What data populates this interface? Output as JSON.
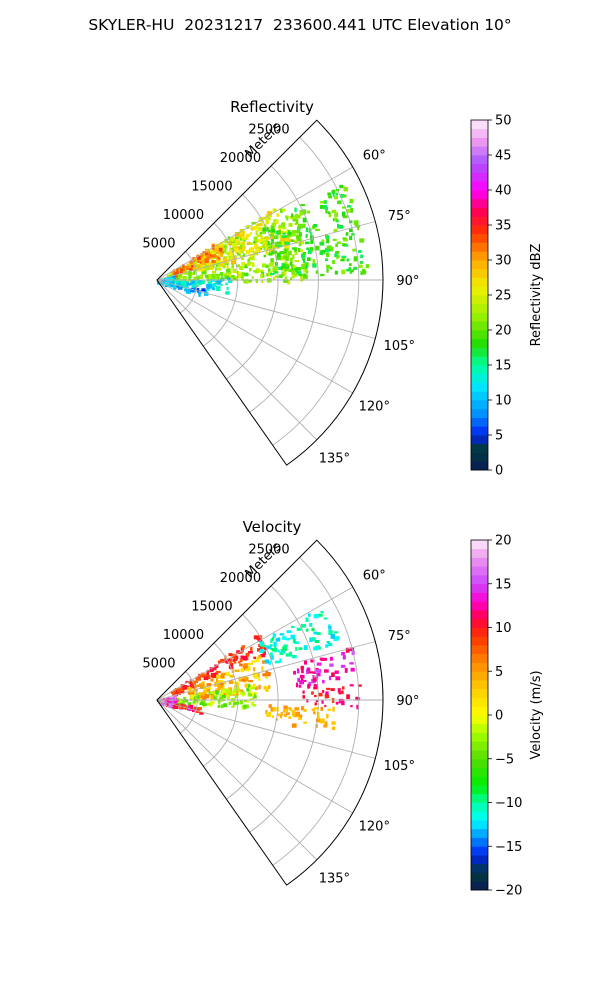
{
  "suptitle": "SKYLER-HU  20231217  233600.441 UTC Elevation 10°",
  "chart_data": [
    {
      "type": "heatmap",
      "projection": "polar-sector",
      "title": "Reflectivity",
      "radial_label": "Meters",
      "radial_ticks": [
        5000,
        10000,
        15000,
        20000,
        25000
      ],
      "radial_tick_labels": [
        "5000",
        "10000",
        "15000",
        "20000",
        "25000"
      ],
      "r_max": 28000,
      "theta_min_deg": 45,
      "theta_max_deg": 145,
      "angle_ticks_deg": [
        60,
        75,
        90,
        105,
        120,
        135
      ],
      "angle_tick_labels": [
        "60°",
        "75°",
        "90°",
        "105°",
        "120°",
        "135°"
      ],
      "grid": true,
      "colorbar": {
        "label": "Reflectivity dBZ",
        "min": 0,
        "max": 50,
        "ticks": [
          0,
          5,
          10,
          15,
          20,
          25,
          30,
          35,
          40,
          45,
          50
        ],
        "tick_labels": [
          "0",
          "5",
          "10",
          "15",
          "20",
          "25",
          "30",
          "35",
          "40",
          "45",
          "50"
        ],
        "stops": [
          [
            0,
            "#0a1a5a"
          ],
          [
            3,
            "#003a3a"
          ],
          [
            5,
            "#0022ee"
          ],
          [
            8,
            "#0090ff"
          ],
          [
            12,
            "#00e8ff"
          ],
          [
            15,
            "#00ffa0"
          ],
          [
            18,
            "#22dd00"
          ],
          [
            22,
            "#99f000"
          ],
          [
            26,
            "#f0f000"
          ],
          [
            30,
            "#ffaa00"
          ],
          [
            34,
            "#ff3300"
          ],
          [
            37,
            "#ff0055"
          ],
          [
            40,
            "#ff00ff"
          ],
          [
            44,
            "#aa55ff"
          ],
          [
            47,
            "#ee99ee"
          ],
          [
            50,
            "#ffeeff"
          ]
        ]
      },
      "echo_regions": [
        {
          "theta": [
            58,
            90
          ],
          "r": [
            1200,
            18500
          ],
          "value": 22,
          "spread": 3
        },
        {
          "theta": [
            58,
            75
          ],
          "r": [
            5000,
            17000
          ],
          "value": 27,
          "spread": 2
        },
        {
          "theta": [
            56,
            70
          ],
          "r": [
            2000,
            9000
          ],
          "value": 31,
          "spread": 3
        },
        {
          "theta": [
            62,
            88
          ],
          "r": [
            14000,
            26000
          ],
          "value": 19,
          "spread": 3
        },
        {
          "theta": [
            88,
            100
          ],
          "r": [
            2000,
            9000
          ],
          "value": 12,
          "spread": 3
        },
        {
          "theta": [
            100,
            108
          ],
          "r": [
            1000,
            6000
          ],
          "value": 8,
          "spread": 3
        },
        {
          "theta": [
            70,
            110
          ],
          "r": [
            0,
            2200
          ],
          "value": 11,
          "spread": 3
        }
      ]
    },
    {
      "type": "heatmap",
      "projection": "polar-sector",
      "title": "Velocity",
      "radial_label": "Meters",
      "radial_ticks": [
        5000,
        10000,
        15000,
        20000,
        25000
      ],
      "radial_tick_labels": [
        "5000",
        "10000",
        "15000",
        "20000",
        "25000"
      ],
      "r_max": 28000,
      "theta_min_deg": 45,
      "theta_max_deg": 145,
      "angle_ticks_deg": [
        60,
        75,
        90,
        105,
        120,
        135
      ],
      "angle_tick_labels": [
        "60°",
        "75°",
        "90°",
        "105°",
        "120°",
        "135°"
      ],
      "grid": true,
      "colorbar": {
        "label": "Velocity (m/s)",
        "min": -20,
        "max": 20,
        "ticks": [
          -20,
          -15,
          -10,
          -5,
          0,
          5,
          10,
          15,
          20
        ],
        "tick_labels": [
          "−20",
          "−15",
          "−10",
          "−5",
          "0",
          "5",
          "10",
          "15",
          "20"
        ],
        "stops": [
          [
            -20,
            "#0a1a5a"
          ],
          [
            -18,
            "#003a3a"
          ],
          [
            -16,
            "#0022ee"
          ],
          [
            -14,
            "#0090ff"
          ],
          [
            -12,
            "#00ffff"
          ],
          [
            -10,
            "#00ffa0"
          ],
          [
            -8,
            "#00ee00"
          ],
          [
            -5,
            "#55dd00"
          ],
          [
            -2,
            "#aaff00"
          ],
          [
            0,
            "#ffff00"
          ],
          [
            3,
            "#ffcc00"
          ],
          [
            6,
            "#ff8800"
          ],
          [
            9,
            "#ff3300"
          ],
          [
            11,
            "#ff0044"
          ],
          [
            13,
            "#ff00cc"
          ],
          [
            15,
            "#cc44ff"
          ],
          [
            18,
            "#ee99ee"
          ],
          [
            20,
            "#ffeeff"
          ]
        ]
      },
      "echo_regions": [
        {
          "theta": [
            56,
            66
          ],
          "r": [
            2000,
            15000
          ],
          "value": 9,
          "spread": 2
        },
        {
          "theta": [
            66,
            85
          ],
          "r": [
            4000,
            14000
          ],
          "value": 4,
          "spread": 3
        },
        {
          "theta": [
            80,
            95
          ],
          "r": [
            1500,
            12000
          ],
          "value": -3,
          "spread": 3
        },
        {
          "theta": [
            60,
            72
          ],
          "r": [
            14000,
            24000
          ],
          "value": -11,
          "spread": 2
        },
        {
          "theta": [
            74,
            84
          ],
          "r": [
            17000,
            25000
          ],
          "value": 13,
          "spread": 2
        },
        {
          "theta": [
            84,
            92
          ],
          "r": [
            18000,
            25000
          ],
          "value": 11,
          "spread": 2
        },
        {
          "theta": [
            92,
            100
          ],
          "r": [
            13000,
            22000
          ],
          "value": 4,
          "spread": 2
        },
        {
          "theta": [
            98,
            106
          ],
          "r": [
            1000,
            6000
          ],
          "value": 10,
          "spread": 5
        },
        {
          "theta": [
            70,
            110
          ],
          "r": [
            0,
            2200
          ],
          "value": 14,
          "spread": 4
        }
      ]
    }
  ]
}
